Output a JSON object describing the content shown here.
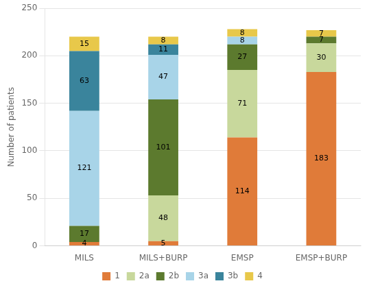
{
  "chart_data": {
    "type": "bar",
    "stacked": true,
    "categories": [
      "MILS",
      "MILS+BURP",
      "EMSP",
      "EMSP+BURP"
    ],
    "series": [
      {
        "name": "1",
        "color": "#E07B39",
        "values": [
          4,
          5,
          114,
          183
        ]
      },
      {
        "name": "2a",
        "color": "#C8D89C",
        "values": [
          0,
          48,
          71,
          30
        ]
      },
      {
        "name": "2b",
        "color": "#5C7A2E",
        "values": [
          17,
          101,
          27,
          7
        ]
      },
      {
        "name": "3a",
        "color": "#A8D4E8",
        "values": [
          121,
          47,
          8,
          0
        ]
      },
      {
        "name": "3b",
        "color": "#3A849C",
        "values": [
          63,
          11,
          0,
          0
        ]
      },
      {
        "name": "4",
        "color": "#E8C84A",
        "values": [
          15,
          8,
          8,
          7
        ]
      }
    ],
    "ylabel": "Number of patients",
    "ylim": [
      0,
      250
    ],
    "yticks": [
      0,
      50,
      100,
      150,
      200,
      250
    ],
    "grid": true,
    "legend": "bottom",
    "data_labels": true
  }
}
